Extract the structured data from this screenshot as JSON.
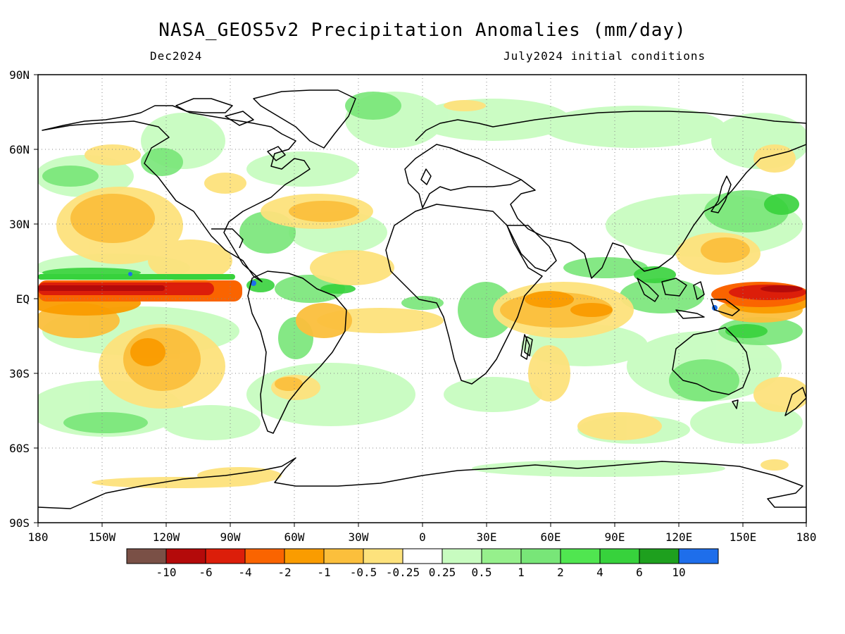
{
  "title": "NASA_GEOS5v2 Precipitation Anomalies (mm/day)",
  "subtitle_left": "Dec2024",
  "subtitle_right": "July2024 initial conditions",
  "lat_labels": [
    "90N",
    "60N",
    "30N",
    "EQ",
    "30S",
    "60S",
    "90S"
  ],
  "lon_labels": [
    "180",
    "150W",
    "120W",
    "90W",
    "60W",
    "30W",
    "0",
    "30E",
    "60E",
    "90E",
    "120E",
    "150E",
    "180"
  ],
  "colorbar": {
    "colors": [
      "#7a5046",
      "#b40a0a",
      "#dc1e0a",
      "#fa6400",
      "#fa9c00",
      "#fbbf3c",
      "#fde27c",
      "#ffffff",
      "#c8fcc0",
      "#96f08c",
      "#78e678",
      "#50e650",
      "#37d23c",
      "#1ea01e",
      "#1e6eeb"
    ],
    "tick_labels": [
      "-10",
      "-6",
      "-4",
      "-2",
      "-1",
      "-0.5",
      "-0.25",
      "0.25",
      "0.5",
      "1",
      "2",
      "4",
      "6",
      "10"
    ]
  },
  "colors": {
    "frame": "#000000",
    "grid": "#888888",
    "coast": "#000000"
  }
}
